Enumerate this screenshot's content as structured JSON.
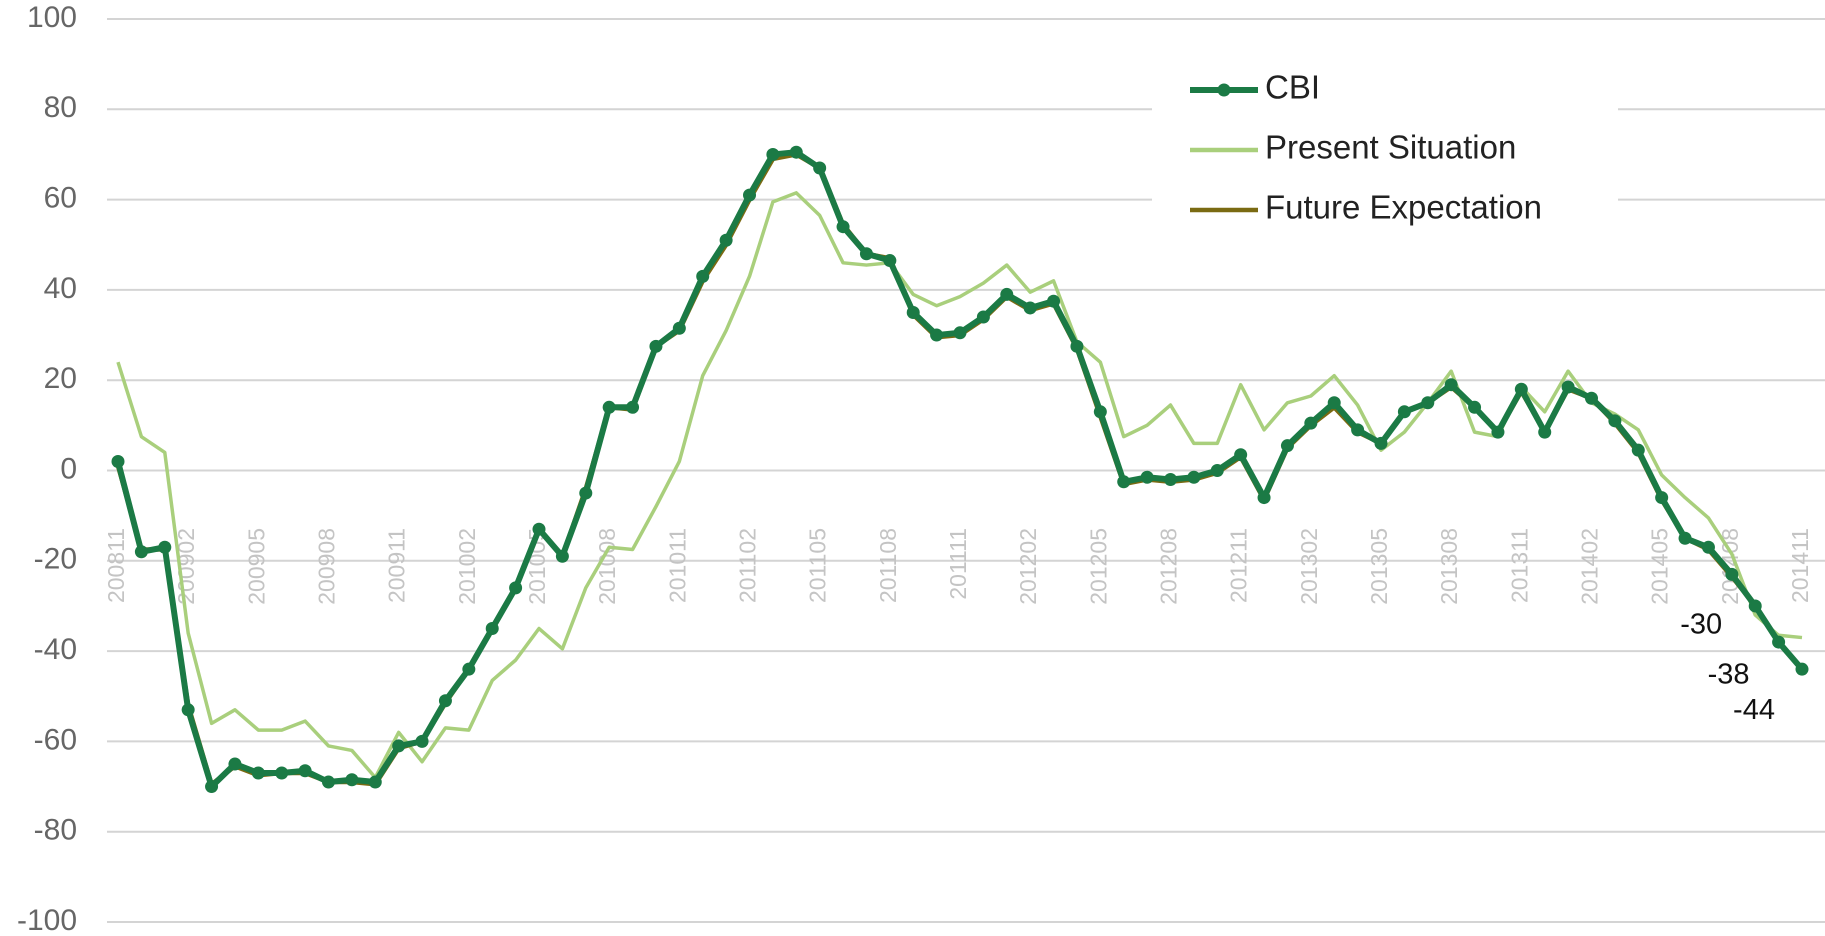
{
  "chart_data": {
    "type": "line",
    "categories": [
      "200811",
      null,
      null,
      "200902",
      null,
      null,
      "200905",
      null,
      null,
      "200908",
      null,
      null,
      "200911",
      null,
      null,
      "201002",
      null,
      null,
      "201005",
      null,
      null,
      "201008",
      null,
      null,
      "201011",
      null,
      null,
      "201102",
      null,
      null,
      "201105",
      null,
      null,
      "201108",
      null,
      null,
      "201111",
      null,
      null,
      "201202",
      null,
      null,
      "201205",
      null,
      null,
      "201208",
      null,
      null,
      "201211",
      null,
      null,
      "201302",
      null,
      null,
      "201305",
      null,
      null,
      "201308",
      null,
      null,
      "201311",
      null,
      null,
      "201402",
      null,
      null,
      "201405",
      null,
      null,
      "201408",
      null,
      null,
      "201411"
    ],
    "series": [
      {
        "name": "CBI",
        "color": "#1b7a45",
        "markers": true,
        "values": [
          2,
          -18,
          -17,
          -53,
          -70,
          -65,
          -67,
          -67,
          -66.5,
          -69,
          -68.5,
          -69,
          -61,
          -60,
          -51,
          -44,
          -35,
          -26,
          -13,
          -19,
          -5,
          14,
          14,
          27.5,
          31.5,
          43,
          51,
          61,
          70,
          70.5,
          67,
          54,
          48,
          46.5,
          35,
          30,
          30.5,
          34,
          39,
          36,
          37.5,
          27.5,
          13,
          -2.5,
          -1.5,
          -2,
          -1.5,
          0,
          3.5,
          -6,
          5.5,
          10.5,
          15,
          9,
          6,
          13,
          15,
          19,
          14,
          8.5,
          18,
          8.5,
          18.5,
          16,
          11,
          4.5,
          -6,
          -15,
          -17,
          -23,
          -30,
          -38,
          -44
        ]
      },
      {
        "name": "Present Situation",
        "color": "#a9cf7c",
        "markers": false,
        "values": [
          24,
          7.5,
          4,
          -36,
          -56,
          -53,
          -57.5,
          -57.5,
          -55.5,
          -61,
          -62,
          -68,
          -58,
          -64.5,
          -57,
          -57.5,
          -46.5,
          -42,
          -35,
          -39.5,
          -26,
          -17,
          -17.5,
          -8,
          2,
          21,
          31,
          43,
          59.5,
          61.5,
          56.5,
          46,
          45.5,
          46,
          39,
          36.5,
          38.5,
          41.5,
          45.5,
          39.5,
          42,
          28.5,
          24,
          7.5,
          10,
          14.5,
          6,
          6,
          19,
          9,
          15,
          16.5,
          21,
          14.5,
          4.5,
          8.5,
          15,
          22,
          8.5,
          7.5,
          18.5,
          13,
          22,
          15,
          12.5,
          9,
          -1,
          -6,
          -10.5,
          -18.5,
          -32,
          -36.5,
          -37
        ]
      },
      {
        "name": "Future Expectation",
        "color": "#7a6a12",
        "markers": false,
        "values": [
          1,
          -17.5,
          -17.5,
          -52,
          -69.5,
          -65.5,
          -67.5,
          -67,
          -67,
          -69,
          -69,
          -69.5,
          -61.5,
          -60,
          -51.5,
          -44,
          -35,
          -26,
          -13,
          -19,
          -4,
          14,
          13.5,
          27.5,
          31,
          42,
          50,
          60,
          69,
          70,
          67,
          54.5,
          48,
          47,
          34.5,
          29.5,
          30,
          33.5,
          38.5,
          35.5,
          37,
          27,
          12,
          -3,
          -2,
          -2.5,
          -2,
          -0.5,
          3,
          -6.5,
          5,
          10,
          14,
          8.5,
          6,
          13,
          15,
          18.5,
          14,
          8.5,
          17.5,
          8.5,
          18,
          16,
          10.5,
          4,
          -6.5,
          -15,
          -17.5,
          -23.5,
          -30,
          -38,
          -44
        ]
      }
    ],
    "ylim": [
      -100,
      100
    ],
    "yticks": [
      -100,
      -80,
      -60,
      -40,
      -20,
      0,
      20,
      40,
      60,
      80,
      100
    ],
    "grid": true,
    "legend": "top-right"
  }
}
